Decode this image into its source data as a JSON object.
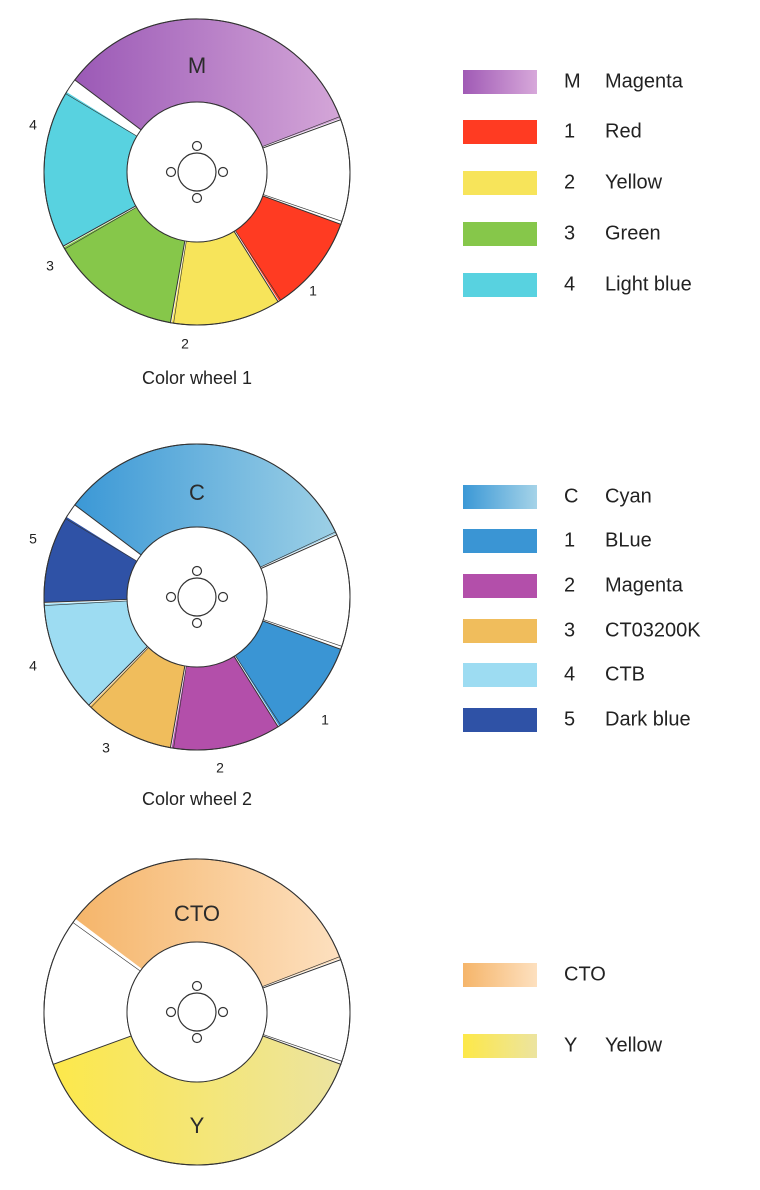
{
  "wheels": [
    {
      "caption": "Color wheel 1",
      "segments": [
        {
          "label": "M",
          "big": true,
          "fill": "grad",
          "colors": [
            "#9b59b6",
            "#d4a6d8"
          ]
        },
        {
          "label": "",
          "fill": "#ffffff"
        },
        {
          "label": "1",
          "fill": "#ff3b22"
        },
        {
          "label": "2",
          "fill": "#f7e45a"
        },
        {
          "label": "3",
          "fill": "#86c74a"
        },
        {
          "label": "4",
          "fill": "#58d2e0"
        }
      ],
      "legend": [
        {
          "key": "M",
          "name": "Magenta",
          "colors": [
            "#a05ab5",
            "#d7a8da"
          ]
        },
        {
          "key": "1",
          "name": "Red",
          "colors": [
            "#ff3b22",
            "#ff3b22"
          ]
        },
        {
          "key": "2",
          "name": "Yellow",
          "colors": [
            "#f7e45a",
            "#f7e45a"
          ]
        },
        {
          "key": "3",
          "name": "Green",
          "colors": [
            "#86c74a",
            "#86c74a"
          ]
        },
        {
          "key": "4",
          "name": "Light blue",
          "colors": [
            "#58d2e0",
            "#58d2e0"
          ]
        }
      ]
    },
    {
      "caption": "Color wheel 2",
      "segments": [
        {
          "label": "C",
          "big": true,
          "fill": "grad",
          "colors": [
            "#3b98d6",
            "#9dd0e6"
          ]
        },
        {
          "label": "",
          "fill": "#ffffff"
        },
        {
          "label": "1",
          "fill": "#3a95d4"
        },
        {
          "label": "2",
          "fill": "#b34faa"
        },
        {
          "label": "3",
          "fill": "#f0bd5c"
        },
        {
          "label": "4",
          "fill": "#9ddcf2"
        },
        {
          "label": "5",
          "fill": "#2f52a6"
        }
      ],
      "legend": [
        {
          "key": "C",
          "name": "Cyan",
          "colors": [
            "#3b98d6",
            "#a5d3e8"
          ]
        },
        {
          "key": "1",
          "name": "BLue",
          "colors": [
            "#3a95d4",
            "#3a95d4"
          ]
        },
        {
          "key": "2",
          "name": "Magenta",
          "colors": [
            "#b34faa",
            "#b34faa"
          ]
        },
        {
          "key": "3",
          "name": "CT03200K",
          "colors": [
            "#f0bd5c",
            "#f0bd5c"
          ]
        },
        {
          "key": "4",
          "name": "CTB",
          "colors": [
            "#9ddcf2",
            "#9ddcf2"
          ]
        },
        {
          "key": "5",
          "name": "Dark blue",
          "colors": [
            "#2f52a6",
            "#2f52a6"
          ]
        }
      ]
    },
    {
      "caption": "",
      "segments": [
        {
          "label": "CTO",
          "big": true,
          "fill": "grad",
          "colors": [
            "#f5b56a",
            "#fde0bf"
          ]
        },
        {
          "label": "",
          "fill": "#ffffff"
        },
        {
          "label": "Y",
          "big": true,
          "fill": "grad",
          "colors": [
            "#fde848",
            "#ece4a0"
          ]
        },
        {
          "label": "",
          "fill": "#ffffff"
        }
      ],
      "legend": [
        {
          "key": "CTO",
          "name": "",
          "colors": [
            "#f5b56a",
            "#fde0bf"
          ]
        },
        {
          "key": "Y",
          "name": "Yellow",
          "colors": [
            "#fde848",
            "#ece4a0"
          ]
        }
      ]
    }
  ]
}
